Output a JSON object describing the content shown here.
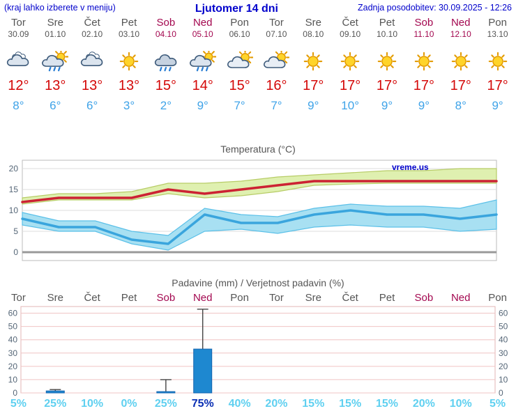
{
  "header": {
    "left_note": "(kraj lahko izberete v meniju)",
    "title": "Ljutomer 14 dni",
    "updated": "Zadnja posodobitev: 30.09.2025 - 12:26"
  },
  "colors": {
    "header_blue": "#0000cc",
    "weekend_red": "#a3074f",
    "max_temp_red": "#d40808",
    "min_temp_blue": "#3fa3e8",
    "prob_cyan": "#5fd0f0",
    "prob_highlight_blue": "#0a2fb4"
  },
  "days": [
    {
      "name": "Tor",
      "date": "30.09",
      "weekend": false,
      "icon": "cloudy",
      "tmax": "12°",
      "tmin": "8°"
    },
    {
      "name": "Sre",
      "date": "01.10",
      "weekend": false,
      "icon": "showers",
      "tmax": "13°",
      "tmin": "6°"
    },
    {
      "name": "Čet",
      "date": "02.10",
      "weekend": false,
      "icon": "cloudy",
      "tmax": "13°",
      "tmin": "6°"
    },
    {
      "name": "Pet",
      "date": "03.10",
      "weekend": false,
      "icon": "sunny",
      "tmax": "13°",
      "tmin": "3°"
    },
    {
      "name": "Sob",
      "date": "04.10",
      "weekend": true,
      "icon": "rain",
      "tmax": "15°",
      "tmin": "2°"
    },
    {
      "name": "Ned",
      "date": "05.10",
      "weekend": true,
      "icon": "showers",
      "tmax": "14°",
      "tmin": "9°"
    },
    {
      "name": "Pon",
      "date": "06.10",
      "weekend": false,
      "icon": "partly",
      "tmax": "15°",
      "tmin": "7°"
    },
    {
      "name": "Tor",
      "date": "07.10",
      "weekend": false,
      "icon": "partly",
      "tmax": "16°",
      "tmin": "7°"
    },
    {
      "name": "Sre",
      "date": "08.10",
      "weekend": false,
      "icon": "sunny",
      "tmax": "17°",
      "tmin": "9°"
    },
    {
      "name": "Čet",
      "date": "09.10",
      "weekend": false,
      "icon": "sunny",
      "tmax": "17°",
      "tmin": "10°"
    },
    {
      "name": "Pet",
      "date": "10.10",
      "weekend": false,
      "icon": "sunny",
      "tmax": "17°",
      "tmin": "9°"
    },
    {
      "name": "Sob",
      "date": "11.10",
      "weekend": true,
      "icon": "sunny",
      "tmax": "17°",
      "tmin": "9°"
    },
    {
      "name": "Ned",
      "date": "12.10",
      "weekend": true,
      "icon": "sunny",
      "tmax": "17°",
      "tmin": "8°"
    },
    {
      "name": "Pon",
      "date": "13.10",
      "weekend": false,
      "icon": "sunny",
      "tmax": "17°",
      "tmin": "9°"
    }
  ],
  "chart_data": [
    {
      "type": "line",
      "title": "Temperatura (°C)",
      "watermark": "vreme.us",
      "x_labels": [
        "Tor",
        "Sre",
        "Čet",
        "Pet",
        "Sob",
        "Ned",
        "Pon",
        "Tor",
        "Sre",
        "Čet",
        "Pet",
        "Sob",
        "Ned",
        "Pon"
      ],
      "ylim": [
        -2,
        22
      ],
      "yticks": [
        0,
        5,
        10,
        15,
        20
      ],
      "grid_color": "#dddddd",
      "zero_line_color": "#999999",
      "series": [
        {
          "name": "max-temp",
          "color": "#cc2233",
          "values": [
            12,
            13,
            13,
            13,
            15,
            14,
            15,
            16,
            17,
            17,
            17,
            17,
            17,
            17
          ]
        },
        {
          "name": "min-temp",
          "color": "#3aa5dd",
          "values": [
            8,
            6,
            6,
            3,
            2,
            9,
            7,
            7,
            9,
            10,
            9,
            9,
            8,
            9
          ]
        }
      ],
      "bands": [
        {
          "name": "max-temp-range",
          "fill": "#dff0b0",
          "edge": "#b7cc66",
          "upper": [
            13,
            14,
            14,
            14.5,
            16.5,
            16.5,
            17,
            18,
            18.5,
            19,
            19.5,
            19.5,
            20,
            20
          ],
          "lower": [
            11.5,
            12.5,
            12.5,
            12.5,
            14,
            13,
            13.5,
            14.5,
            16,
            16.3,
            16.5,
            16.5,
            16.5,
            16.5
          ]
        },
        {
          "name": "min-temp-range",
          "fill": "#a8e0f2",
          "edge": "#5bc0e8",
          "upper": [
            9.5,
            7.5,
            7.5,
            5,
            4,
            10.5,
            9,
            8.5,
            10.5,
            11.5,
            11,
            11,
            10.5,
            12.5
          ],
          "lower": [
            6.5,
            5,
            5,
            2,
            0.5,
            5,
            5.5,
            4.5,
            6,
            6.5,
            6,
            6,
            5,
            5.5
          ]
        }
      ]
    },
    {
      "type": "bar",
      "title": "Padavine (mm) / Verjetnost padavin (%)",
      "categories": [
        "Tor",
        "Sre",
        "Čet",
        "Pet",
        "Sob",
        "Ned",
        "Pon",
        "Tor",
        "Sre",
        "Čet",
        "Pet",
        "Sob",
        "Ned",
        "Pon"
      ],
      "weekend": [
        false,
        false,
        false,
        false,
        true,
        true,
        false,
        false,
        false,
        false,
        false,
        true,
        true,
        false
      ],
      "ylim": [
        0,
        65
      ],
      "yticks": [
        0,
        10,
        20,
        30,
        40,
        50,
        60
      ],
      "grid_color": "#f0c4c4",
      "bar_color": "#1e88d0",
      "bar_edge_color": "#1565b0",
      "whisker_color": "#444444",
      "values_mm": [
        0,
        1.5,
        0,
        0,
        1,
        33,
        0,
        0,
        0,
        0,
        0,
        0,
        0,
        0
      ],
      "whisker_mm": [
        0,
        2.5,
        0,
        0,
        10,
        63,
        0,
        0,
        0,
        0,
        0,
        0,
        0,
        0
      ],
      "probabilities": [
        "5%",
        "25%",
        "10%",
        "0%",
        "25%",
        "75%",
        "40%",
        "20%",
        "15%",
        "15%",
        "15%",
        "20%",
        "10%",
        "5%"
      ],
      "prob_highlight_index": 5
    }
  ]
}
